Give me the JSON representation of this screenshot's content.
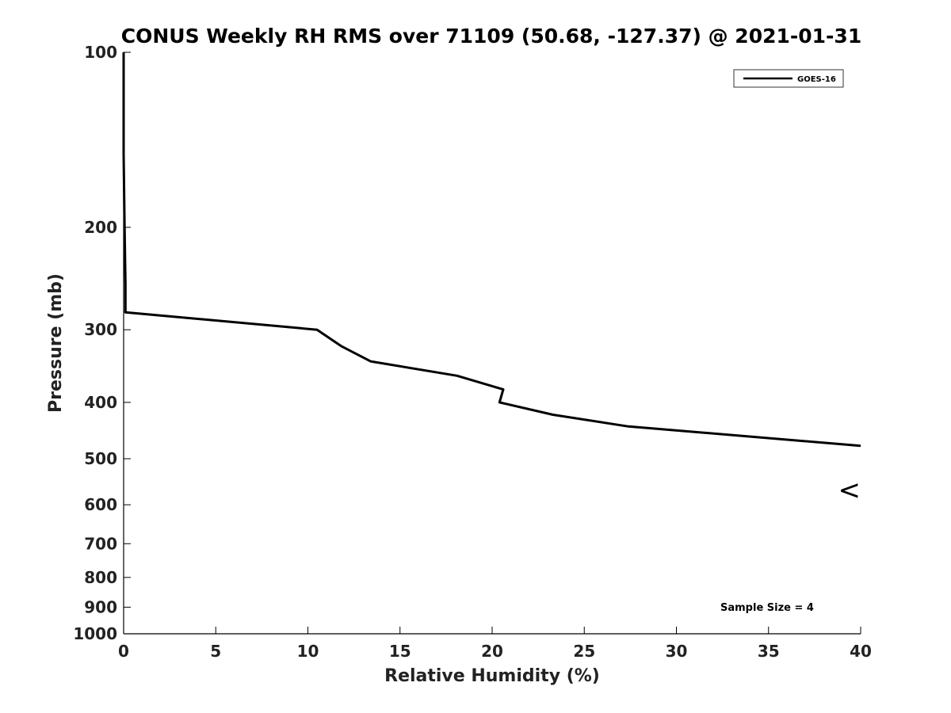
{
  "chart_data": {
    "type": "line",
    "title": "CONUS Weekly RH RMS over 71109 (50.68, -127.37) @ 2021-01-31",
    "xlabel": "Relative Humidity (%)",
    "ylabel": "Pressure (mb)",
    "xlim": [
      0,
      40
    ],
    "ylim": [
      100,
      1000
    ],
    "y_scale": "log",
    "y_reversed": true,
    "grid": false,
    "legend_position": "top-right",
    "x_ticks": [
      0,
      5,
      10,
      15,
      20,
      25,
      30,
      35,
      40
    ],
    "y_ticks": [
      100,
      200,
      300,
      400,
      500,
      600,
      700,
      800,
      900,
      1000
    ],
    "series": [
      {
        "name": "GOES-16",
        "color": "#000000",
        "points": [
          {
            "x": 0,
            "y": 100
          },
          {
            "x": 0,
            "y": 150
          },
          {
            "x": 0.05,
            "y": 200
          },
          {
            "x": 0.1,
            "y": 250
          },
          {
            "x": 0.1,
            "y": 280
          },
          {
            "x": 10.5,
            "y": 300
          },
          {
            "x": 11.8,
            "y": 320
          },
          {
            "x": 13.4,
            "y": 340
          },
          {
            "x": 18.1,
            "y": 360
          },
          {
            "x": 20.6,
            "y": 380
          },
          {
            "x": 20.4,
            "y": 400
          },
          {
            "x": 23.3,
            "y": 420
          },
          {
            "x": 27.4,
            "y": 440
          },
          {
            "x": 40,
            "y": 475
          }
        ]
      }
    ],
    "annotations": {
      "sample_size": "Sample Size = 4",
      "offscale_marker": "<",
      "offscale_pressure": 565
    }
  }
}
